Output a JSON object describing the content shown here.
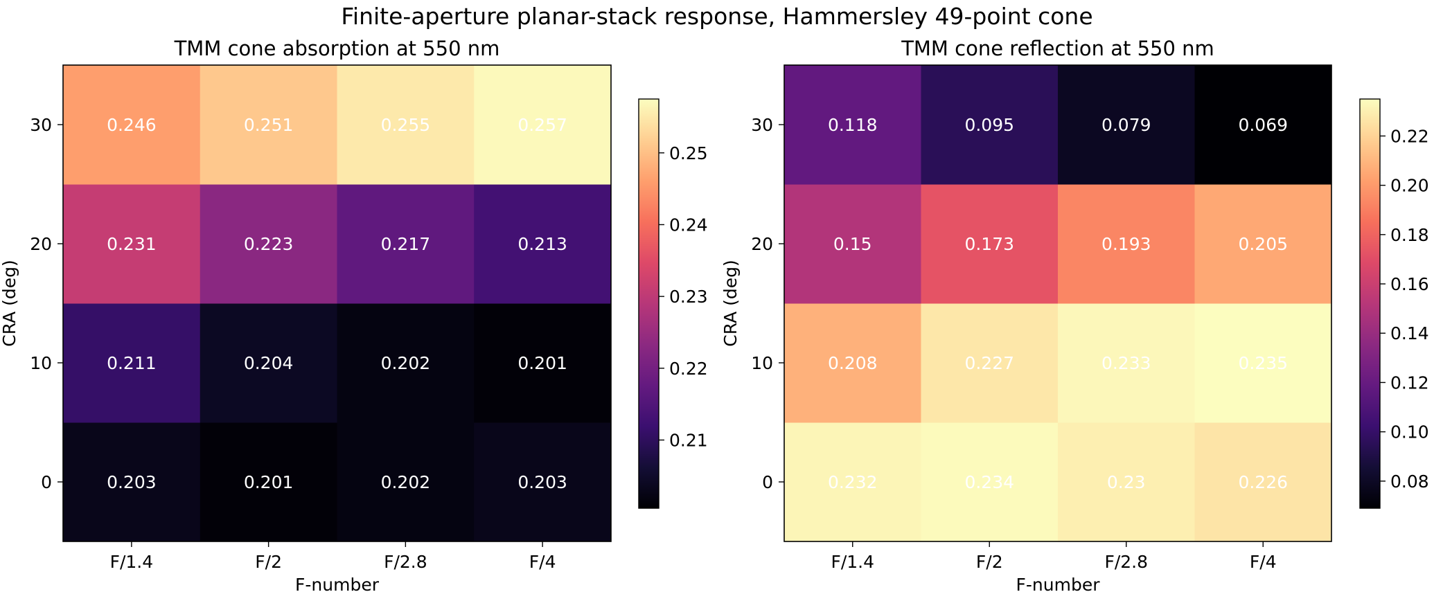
{
  "suptitle": "Finite-aperture planar-stack response, Hammersley 49-point cone",
  "chart_data": [
    {
      "type": "heatmap",
      "title": "TMM cone absorption at 550 nm",
      "xlabel": "F-number",
      "ylabel": "CRA (deg)",
      "x_categories": [
        "F/1.4",
        "F/2",
        "F/2.8",
        "F/4"
      ],
      "y_categories": [
        "0",
        "10",
        "20",
        "30"
      ],
      "values": [
        [
          0.203,
          0.201,
          0.202,
          0.203
        ],
        [
          0.211,
          0.204,
          0.202,
          0.201
        ],
        [
          0.231,
          0.223,
          0.217,
          0.213
        ],
        [
          0.246,
          0.251,
          0.255,
          0.257
        ]
      ],
      "value_labels": [
        [
          "0.203",
          "0.201",
          "0.202",
          "0.203"
        ],
        [
          "0.211",
          "0.204",
          "0.202",
          "0.201"
        ],
        [
          "0.231",
          "0.223",
          "0.217",
          "0.213"
        ],
        [
          "0.246",
          "0.251",
          "0.255",
          "0.257"
        ]
      ],
      "colormap": "magma",
      "vmin": 0.2005,
      "vmax": 0.2575,
      "colorbar_ticks": [
        0.21,
        0.22,
        0.23,
        0.24,
        0.25
      ],
      "colorbar_tick_labels": [
        "0.21",
        "0.22",
        "0.23",
        "0.24",
        "0.25"
      ]
    },
    {
      "type": "heatmap",
      "title": "TMM cone reflection at 550 nm",
      "xlabel": "F-number",
      "ylabel": "CRA (deg)",
      "x_categories": [
        "F/1.4",
        "F/2",
        "F/2.8",
        "F/4"
      ],
      "y_categories": [
        "0",
        "10",
        "20",
        "30"
      ],
      "values": [
        [
          0.232,
          0.234,
          0.23,
          0.226
        ],
        [
          0.208,
          0.227,
          0.233,
          0.235
        ],
        [
          0.15,
          0.173,
          0.193,
          0.205
        ],
        [
          0.118,
          0.095,
          0.079,
          0.069
        ]
      ],
      "value_labels": [
        [
          "0.232",
          "0.234",
          "0.23",
          "0.226"
        ],
        [
          "0.208",
          "0.227",
          "0.233",
          "0.235"
        ],
        [
          "0.15",
          "0.173",
          "0.193",
          "0.205"
        ],
        [
          "0.118",
          "0.095",
          "0.079",
          "0.069"
        ]
      ],
      "colormap": "magma",
      "vmin": 0.069,
      "vmax": 0.235,
      "colorbar_ticks": [
        0.08,
        0.1,
        0.12,
        0.14,
        0.16,
        0.18,
        0.2,
        0.22
      ],
      "colorbar_tick_labels": [
        "0.08",
        "0.10",
        "0.12",
        "0.14",
        "0.16",
        "0.18",
        "0.20",
        "0.22"
      ]
    }
  ]
}
